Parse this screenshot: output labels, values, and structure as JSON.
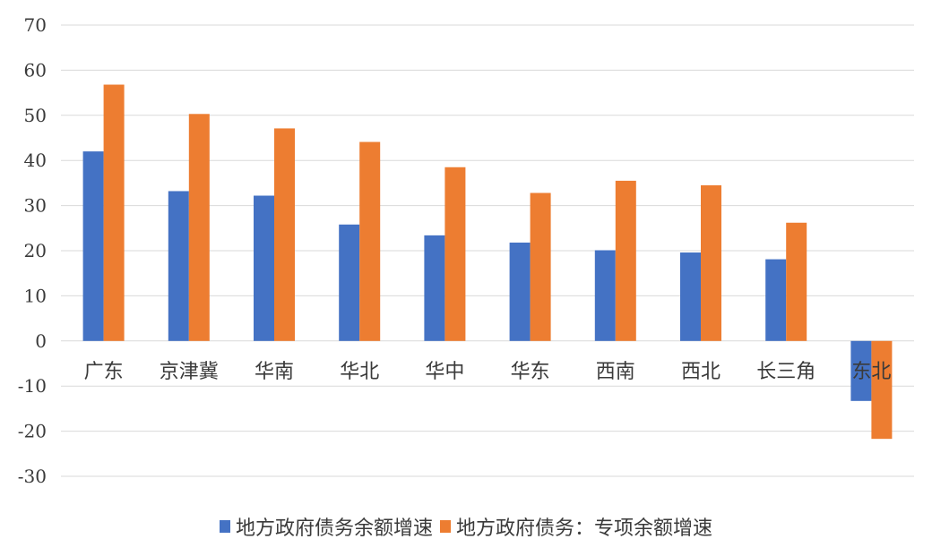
{
  "chart_data": {
    "type": "bar",
    "categories": [
      "广东",
      "京津冀",
      "华南",
      "华北",
      "华中",
      "华东",
      "西南",
      "西北",
      "长三角",
      "东北"
    ],
    "series": [
      {
        "name": "地方政府债务余额增速",
        "color": "#4472C4",
        "values": [
          42,
          33.2,
          32.2,
          25.8,
          23.4,
          21.8,
          20.1,
          19.6,
          18.1,
          -13.3
        ]
      },
      {
        "name": "地方政府债务：专项余额增速",
        "color": "#ED7D31",
        "values": [
          56.8,
          50.3,
          47.1,
          44.1,
          38.5,
          32.8,
          35.5,
          34.5,
          26.2,
          -21.7
        ]
      }
    ],
    "ylim": [
      -30,
      70
    ],
    "yticks": [
      70,
      60,
      50,
      40,
      30,
      20,
      10,
      0,
      -10,
      -20,
      -30
    ],
    "grid": true,
    "legend_position": "bottom"
  }
}
